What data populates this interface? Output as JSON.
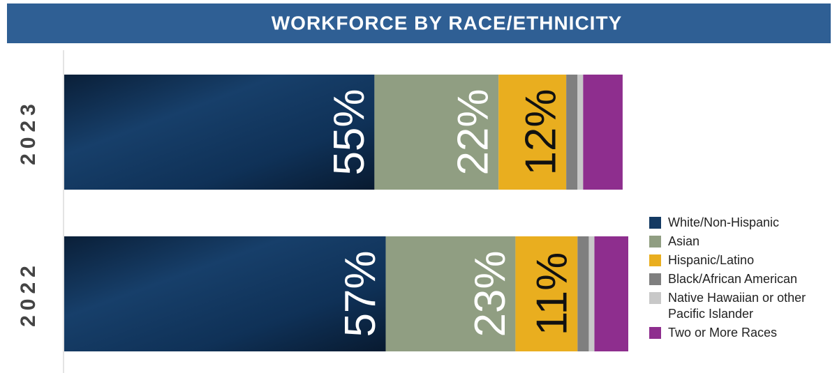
{
  "chart_data": {
    "type": "stacked-barh",
    "title": "WORKFORCE BY RACE/ETHNICITY",
    "categories": [
      "2023",
      "2022"
    ],
    "xlim": [
      0,
      100
    ],
    "series": [
      {
        "name": "White/Non-Hispanic",
        "color": "#143a63",
        "values": [
          55,
          57
        ],
        "value_labels": [
          "55%",
          "57%"
        ]
      },
      {
        "name": "Asian",
        "color": "#909e82",
        "values": [
          22,
          23
        ],
        "value_labels": [
          "22%",
          "23%"
        ]
      },
      {
        "name": "Hispanic/Latino",
        "color": "#e9ae1f",
        "values": [
          12,
          11
        ],
        "value_labels": [
          "12%",
          "11%"
        ]
      },
      {
        "name": "Black/African American",
        "color": "#7f7f7f",
        "values": [
          2,
          2
        ]
      },
      {
        "name": "Native Hawaiian or other Pacific Islander",
        "color": "#c8c8c8",
        "values": [
          1,
          1
        ]
      },
      {
        "name": "Two or More Races",
        "color": "#8e2e8e",
        "values": [
          7,
          6
        ]
      }
    ],
    "legend": "right"
  }
}
